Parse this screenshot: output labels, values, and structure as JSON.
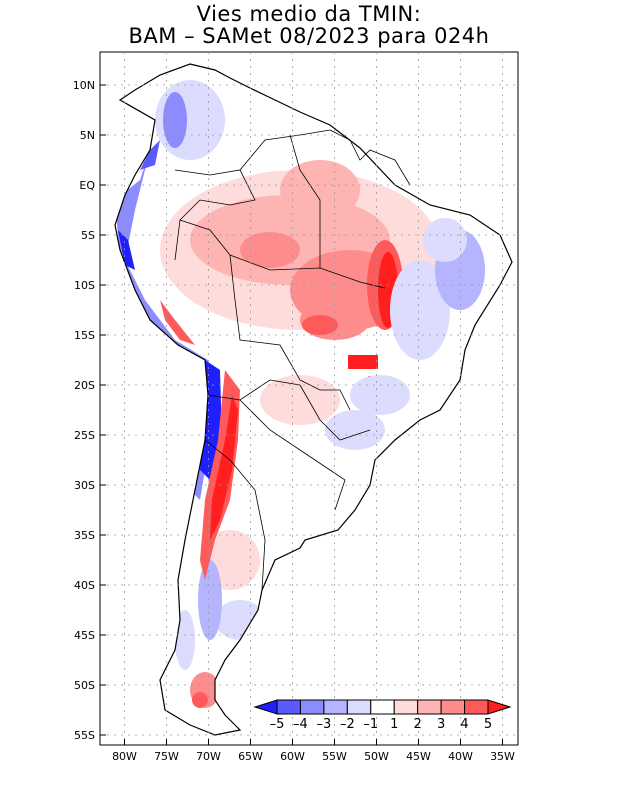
{
  "title_line1": "Vies medio da TMIN:",
  "title_line2": "BAM – SAMet 08/2023  para 024h",
  "lat_labels": [
    "10N",
    "5N",
    "EQ",
    "5S",
    "10S",
    "15S",
    "20S",
    "25S",
    "30S",
    "35S",
    "40S",
    "45S",
    "50S",
    "55S"
  ],
  "lon_labels": [
    "80W",
    "75W",
    "70W",
    "65W",
    "60W",
    "55W",
    "50W",
    "45W",
    "40W",
    "35W"
  ],
  "colorbar": {
    "colors": [
      "#1f1fff",
      "#5a5aff",
      "#8c8cff",
      "#b4b4ff",
      "#dcdcff",
      "#ffffff",
      "#ffdcdc",
      "#ffb4b4",
      "#ff8c8c",
      "#ff5a5a",
      "#ff1f1f"
    ],
    "labels": [
      "–5",
      "–4",
      "–3",
      "–2",
      "–1",
      "1",
      "2",
      "3",
      "4",
      "5"
    ]
  },
  "colors": {
    "coast": "#000000",
    "grid": "#9a9a9a"
  }
}
